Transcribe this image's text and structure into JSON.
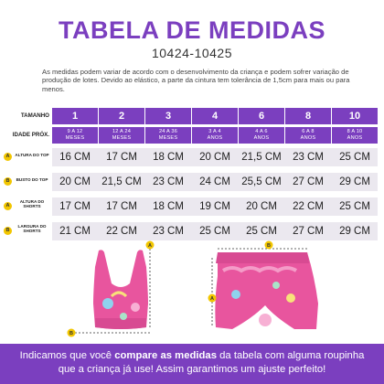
{
  "title": "TABELA DE MEDIDAS",
  "code": "10424-10425",
  "note": "As medidas podem variar de acordo com o desenvolvimento da criança e podem sofrer variação de produção de lotes. Devido ao elástico, a parte da cintura tem tolerância de 1,5cm para mais ou para menos.",
  "table": {
    "size_label": "TAMANHO",
    "age_label": "IDADE PRÓX.",
    "sizes": [
      "1",
      "2",
      "3",
      "4",
      "6",
      "8",
      "10"
    ],
    "ages": [
      [
        "9 A 12",
        "MESES"
      ],
      [
        "12 A 24",
        "MESES"
      ],
      [
        "24 A 36",
        "MESES"
      ],
      [
        "3 A 4",
        "ANOS"
      ],
      [
        "4 A 6",
        "ANOS"
      ],
      [
        "6 A 8",
        "ANOS"
      ],
      [
        "8 A 10",
        "ANOS"
      ]
    ],
    "rows": [
      {
        "badge": "A",
        "label": [
          "ALTURA DO TOP"
        ],
        "values": [
          "16 CM",
          "17 CM",
          "18 CM",
          "20 CM",
          "21,5 CM",
          "23 CM",
          "25 CM"
        ]
      },
      {
        "badge": "B",
        "label": [
          "BUSTO DO TOP"
        ],
        "values": [
          "20 CM",
          "21,5 CM",
          "23 CM",
          "24 CM",
          "25,5 CM",
          "27 CM",
          "29 CM"
        ]
      },
      {
        "badge": "A",
        "label": [
          "ALTURA  DO",
          "SHORTS"
        ],
        "values": [
          "17 CM",
          "17 CM",
          "18 CM",
          "19 CM",
          "20 CM",
          "22 CM",
          "25 CM"
        ]
      },
      {
        "badge": "B",
        "label": [
          "LARGURA  DO",
          "SHORTS"
        ],
        "values": [
          "21 CM",
          "22 CM",
          "23 CM",
          "25 CM",
          "25 CM",
          "27 CM",
          "29 CM"
        ]
      }
    ]
  },
  "illustration": {
    "top_marker_a": "A",
    "top_marker_b": "B",
    "shorts_marker_a": "A",
    "shorts_marker_b": "B"
  },
  "footer": {
    "line1_pre": "Indicamos que você ",
    "line1_bold": "compare as medidas",
    "line1_post": " da tabela com alguma roupinha",
    "line2": "que a criança já use! Assim garantimos um ajuste perfeito!"
  },
  "colors": {
    "accent": "#7b3fbf",
    "row_bg": "#ebe8ef",
    "badge": "#f2c600",
    "garment_pink": "#e8559e"
  }
}
